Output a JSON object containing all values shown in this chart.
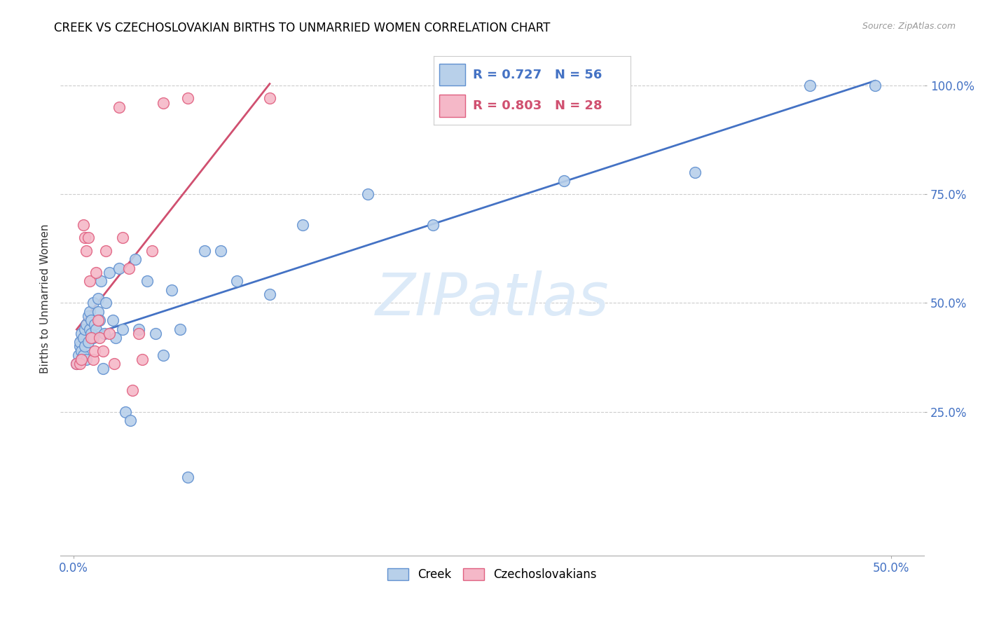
{
  "title": "CREEK VS CZECHOSLOVAKIAN BIRTHS TO UNMARRIED WOMEN CORRELATION CHART",
  "source": "Source: ZipAtlas.com",
  "ylabel": "Births to Unmarried Women",
  "x_tick_positions": [
    0.0,
    0.5
  ],
  "x_tick_labels": [
    "0.0%",
    "50.0%"
  ],
  "y_tick_positions": [
    0.25,
    0.5,
    0.75,
    1.0
  ],
  "y_tick_labels": [
    "25.0%",
    "50.0%",
    "75.0%",
    "100.0%"
  ],
  "xlim": [
    -0.008,
    0.52
  ],
  "ylim": [
    -0.08,
    1.1
  ],
  "legend_creek": "Creek",
  "legend_czech": "Czechoslovakians",
  "r_creek": 0.727,
  "n_creek": 56,
  "r_czech": 0.803,
  "n_czech": 28,
  "creek_color": "#b8d0ea",
  "czech_color": "#f5b8c8",
  "creek_edge_color": "#6090d0",
  "czech_edge_color": "#e06080",
  "creek_line_color": "#4472c4",
  "czech_line_color": "#d05070",
  "title_fontsize": 12,
  "source_fontsize": 9,
  "axis_tick_color": "#4472c4",
  "ylabel_color": "#333333",
  "watermark_color": "#dceaf8",
  "creek_x": [
    0.002,
    0.003,
    0.004,
    0.004,
    0.005,
    0.005,
    0.005,
    0.006,
    0.006,
    0.007,
    0.007,
    0.008,
    0.008,
    0.009,
    0.009,
    0.01,
    0.01,
    0.011,
    0.011,
    0.012,
    0.012,
    0.013,
    0.014,
    0.015,
    0.015,
    0.016,
    0.017,
    0.018,
    0.019,
    0.02,
    0.022,
    0.024,
    0.026,
    0.028,
    0.03,
    0.032,
    0.035,
    0.038,
    0.04,
    0.045,
    0.05,
    0.055,
    0.06,
    0.065,
    0.07,
    0.08,
    0.09,
    0.1,
    0.12,
    0.14,
    0.18,
    0.22,
    0.3,
    0.38,
    0.45,
    0.49
  ],
  "creek_y": [
    0.36,
    0.38,
    0.4,
    0.41,
    0.37,
    0.39,
    0.43,
    0.38,
    0.42,
    0.4,
    0.44,
    0.37,
    0.45,
    0.41,
    0.47,
    0.44,
    0.48,
    0.43,
    0.46,
    0.42,
    0.5,
    0.45,
    0.44,
    0.48,
    0.51,
    0.46,
    0.55,
    0.35,
    0.43,
    0.5,
    0.57,
    0.46,
    0.42,
    0.58,
    0.44,
    0.25,
    0.23,
    0.6,
    0.44,
    0.55,
    0.43,
    0.38,
    0.53,
    0.44,
    0.1,
    0.62,
    0.62,
    0.55,
    0.52,
    0.68,
    0.75,
    0.68,
    0.78,
    0.8,
    1.0,
    1.0
  ],
  "czech_x": [
    0.002,
    0.004,
    0.005,
    0.006,
    0.007,
    0.008,
    0.009,
    0.01,
    0.011,
    0.012,
    0.013,
    0.014,
    0.015,
    0.016,
    0.018,
    0.02,
    0.022,
    0.025,
    0.028,
    0.03,
    0.034,
    0.036,
    0.04,
    0.042,
    0.048,
    0.055,
    0.07,
    0.12
  ],
  "czech_y": [
    0.36,
    0.36,
    0.37,
    0.68,
    0.65,
    0.62,
    0.65,
    0.55,
    0.42,
    0.37,
    0.39,
    0.57,
    0.46,
    0.42,
    0.39,
    0.62,
    0.43,
    0.36,
    0.95,
    0.65,
    0.58,
    0.3,
    0.43,
    0.37,
    0.62,
    0.96,
    0.97,
    0.97
  ]
}
